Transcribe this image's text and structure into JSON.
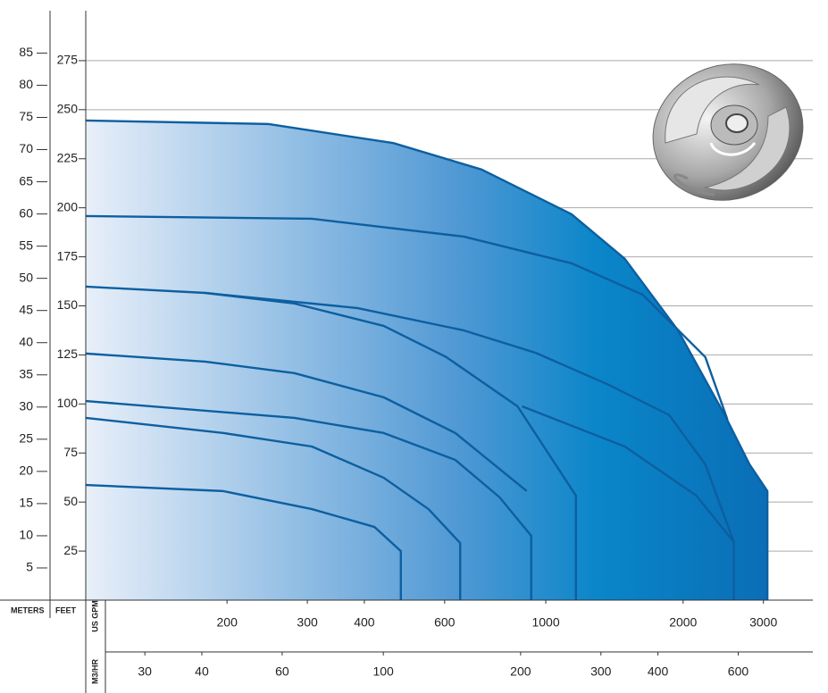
{
  "chart_data": {
    "type": "line",
    "color": "#0d5fa0",
    "x_axis_label": "US GPM",
    "x2_axis_label": "M3/HR",
    "y_axis_label": "FEET",
    "y2_axis_label": "METERS",
    "xlim": [
      98,
      3850
    ],
    "log_x": true,
    "xticks": [
      200,
      300,
      400,
      600,
      1000,
      2000,
      3000
    ],
    "x2lim": [
      22.26,
      874.4
    ],
    "x2ticks": [
      30,
      40,
      60,
      100,
      200,
      300,
      400,
      600
    ],
    "ylim": [
      0,
      300
    ],
    "yticks": [
      25,
      50,
      75,
      100,
      125,
      150,
      175,
      200,
      225,
      250,
      275
    ],
    "y2lim": [
      0,
      91.44
    ],
    "y2ticks": [
      5,
      10,
      15,
      20,
      25,
      30,
      35,
      40,
      45,
      50,
      55,
      60,
      65,
      70,
      75,
      80,
      85
    ],
    "grid": true,
    "series": [
      {
        "x": [
          98,
          246,
          463,
          723,
          1139,
          1490,
          1949,
          2468,
          2797,
          3061,
          3061
        ],
        "values": [
          244.5,
          242.7,
          233,
          219.5,
          196.7,
          174,
          137.5,
          94.3,
          69.2,
          55.6,
          0
        ]
      },
      {
        "x": [
          98,
          307,
          661,
          1139,
          1631,
          2237,
          2502
        ],
        "values": [
          195.8,
          194.4,
          185.3,
          171.7,
          155.7,
          123.9,
          92
        ]
      },
      {
        "x": [
          98,
          179,
          386,
          661,
          949,
          1361,
          1865,
          2237,
          2584,
          2584
        ],
        "values": [
          159.8,
          156.6,
          148.9,
          137.5,
          126.1,
          110.2,
          94.3,
          69.2,
          29.6,
          0
        ]
      },
      {
        "x": [
          179,
          281,
          441,
          605,
          867,
          1164,
          1164
        ],
        "values": [
          156.6,
          151.2,
          139.8,
          123.9,
          98.8,
          53.3,
          0
        ]
      },
      {
        "x": [
          887,
          1490,
          2137,
          2584
        ],
        "values": [
          98.8,
          78.3,
          53.3,
          29.6
        ]
      },
      {
        "x": [
          98,
          179,
          281,
          441,
          633,
          908
        ],
        "values": [
          125.7,
          121.6,
          115.7,
          103.4,
          85.2,
          55.6
        ]
      },
      {
        "x": [
          98,
          281,
          441,
          633,
          792,
          929,
          929
        ],
        "values": [
          101.5,
          92.9,
          85.2,
          71.5,
          52.4,
          32.8,
          0
        ]
      },
      {
        "x": [
          98,
          196,
          307,
          441,
          553,
          649,
          649
        ],
        "values": [
          92.9,
          85.2,
          78.3,
          62.4,
          46.4,
          29.1,
          0
        ]
      },
      {
        "x": [
          98,
          196,
          307,
          421,
          481,
          481
        ],
        "values": [
          58.7,
          55.6,
          46.4,
          37.3,
          25,
          0
        ]
      }
    ]
  }
}
